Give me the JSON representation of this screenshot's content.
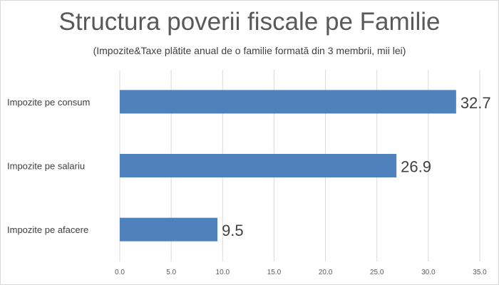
{
  "chart_data": {
    "type": "bar",
    "orientation": "horizontal",
    "title": "Structura poverii fiscale pe Familie",
    "subtitle": "(Impozite&Taxe plătite anual de o familie formată din 3 membrii, mii lei)",
    "categories": [
      "Impozite pe consum",
      "Impozite pe salariu",
      "Impozite pe afacere"
    ],
    "values": [
      32.7,
      26.9,
      9.5
    ],
    "value_labels": [
      "32.7",
      "26.9",
      "9.5"
    ],
    "xlim": [
      0,
      35
    ],
    "x_ticks": [
      "0.0",
      "5.0",
      "10.0",
      "15.0",
      "20.0",
      "25.0",
      "30.0",
      "35.0"
    ],
    "xlabel": "",
    "ylabel": "",
    "grid": true,
    "legend": "none",
    "bar_color": "#4f81bd"
  }
}
